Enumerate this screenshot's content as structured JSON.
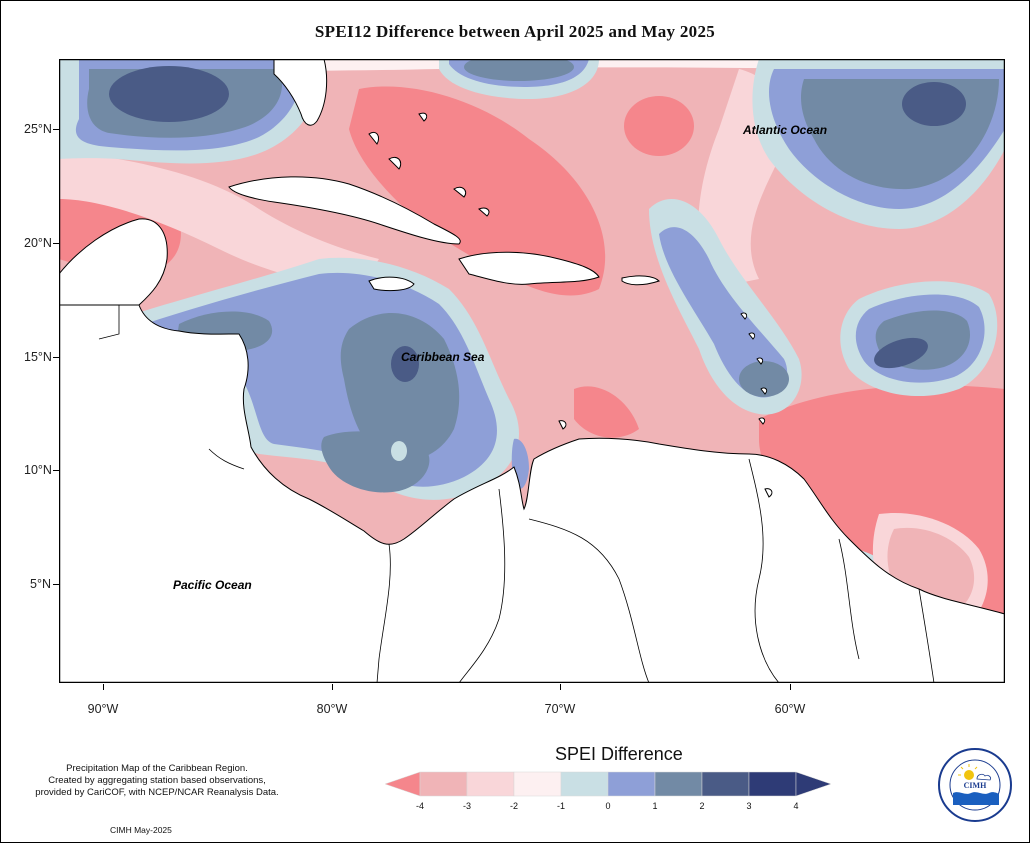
{
  "title": "SPEI12 Difference between April 2025 and May 2025",
  "axes": {
    "lat_labels": [
      "25°N",
      "20°N",
      "15°N",
      "10°N",
      "5°N"
    ],
    "lon_labels": [
      "90°W",
      "80°W",
      "70°W",
      "60°W"
    ]
  },
  "ocean_labels": {
    "atlantic": "Atlantic Ocean",
    "caribbean": "Caribbean Sea",
    "pacific": "Pacific Ocean"
  },
  "legend": {
    "title": "SPEI Difference",
    "tick_labels": [
      "-4",
      "-3",
      "-2",
      "-1",
      "0",
      "1",
      "2",
      "3",
      "4"
    ],
    "colors": [
      "#f5868c",
      "#f0b4b7",
      "#f9d6d9",
      "#fdf0f1",
      "#c9dfe4",
      "#8e9fd7",
      "#728aa5",
      "#4a5b86",
      "#2e3b76"
    ]
  },
  "footnote": {
    "lines": [
      "Precipitation Map of the Caribbean Region.",
      "Created by aggregating station based observations,",
      "provided by CariCOF, with NCEP/NCAR Reanalysis Data."
    ],
    "credit": "CIMH May-2025"
  },
  "logo": {
    "text": "CIMH",
    "ring_text": "Caribbean Institute for Meteorology and Hydrology"
  }
}
